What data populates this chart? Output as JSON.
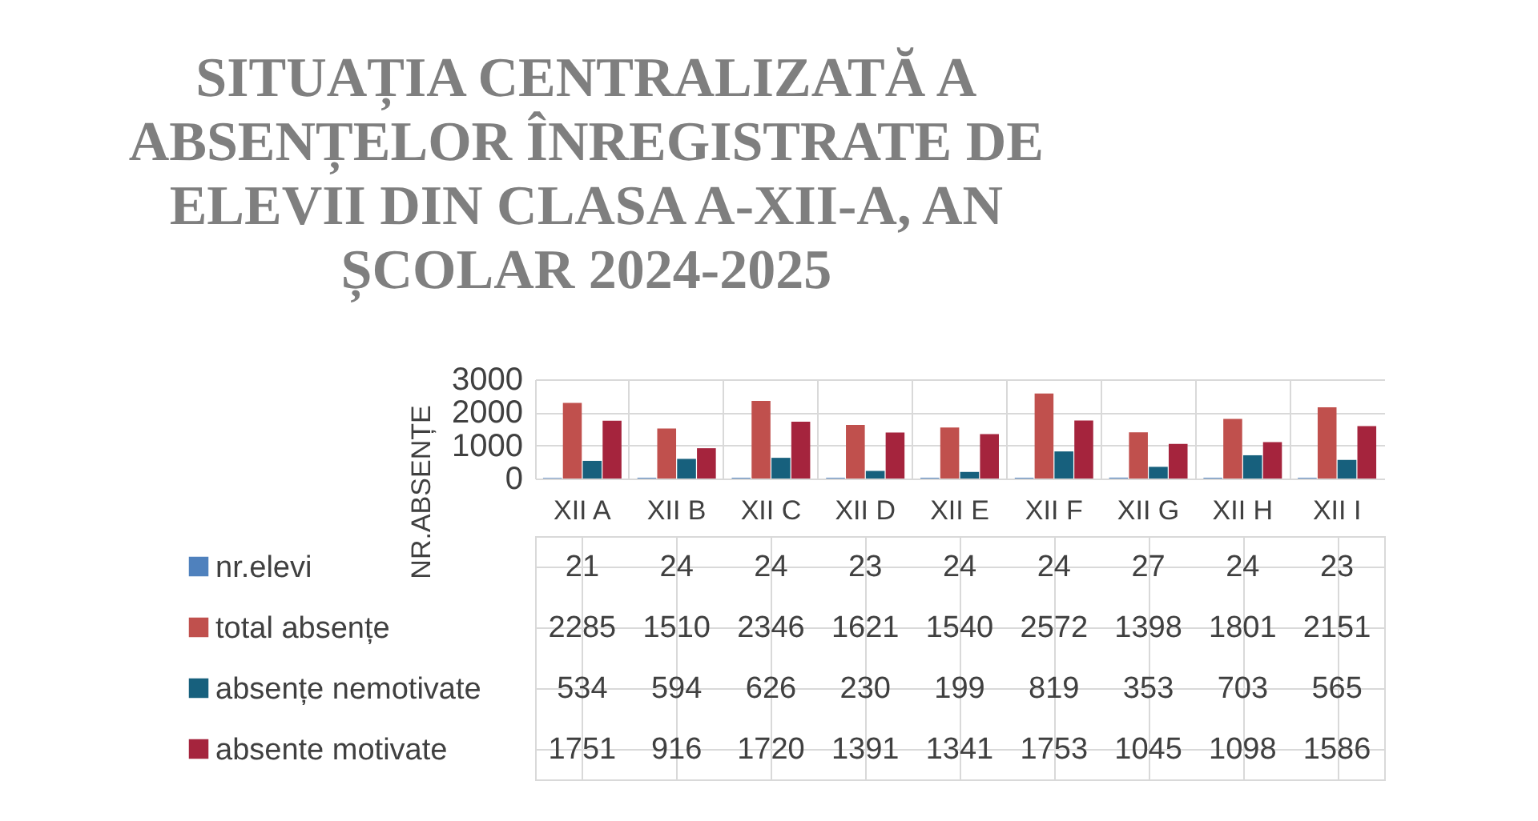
{
  "chart_data": {
    "type": "bar",
    "title": "SITUAȚIA CENTRALIZATĂ A ABSENȚELOR ÎNREGISTRATE DE ELEVII DIN CLASA A-XII-A, AN ȘCOLAR 2024-2025",
    "ylabel": "NR.ABSENȚE",
    "categories": [
      "XII A",
      "XII B",
      "XII C",
      "XII D",
      "XII E",
      "XII F",
      "XII G",
      "XII H",
      "XII I"
    ],
    "series": [
      {
        "name": "nr.elevi",
        "color": "#4f81bd",
        "values": [
          21,
          24,
          24,
          23,
          24,
          24,
          27,
          24,
          23
        ]
      },
      {
        "name": "total absențe",
        "color": "#c0504d",
        "values": [
          2285,
          1510,
          2346,
          1621,
          1540,
          2572,
          1398,
          1801,
          2151
        ]
      },
      {
        "name": "absențe nemotivate",
        "color": "#17607d",
        "values": [
          534,
          594,
          626,
          230,
          199,
          819,
          353,
          703,
          565
        ]
      },
      {
        "name": "absente motivate",
        "color": "#a5243d",
        "values": [
          1751,
          916,
          1720,
          1391,
          1341,
          1753,
          1045,
          1098,
          1586
        ]
      }
    ],
    "ylim": [
      0,
      3000
    ],
    "yticks": [
      0,
      1000,
      2000,
      3000
    ],
    "grid": "y",
    "legend": "bottom left",
    "data_labels": true
  }
}
